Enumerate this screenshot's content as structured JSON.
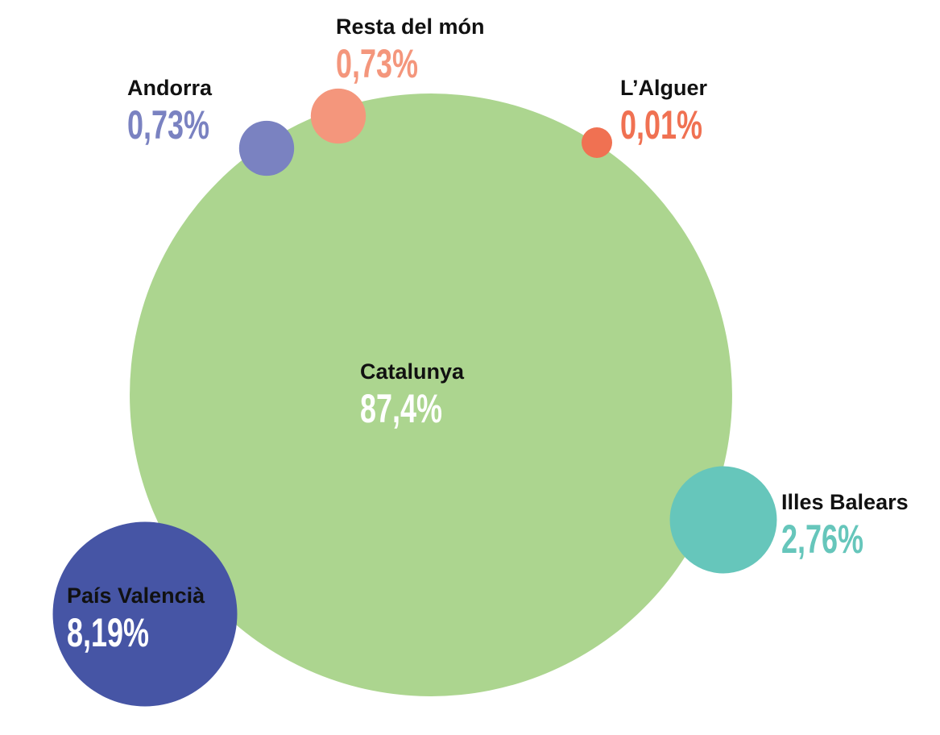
{
  "chart_data": {
    "type": "bubble",
    "categories": [
      "Catalunya",
      "País Valencià",
      "Illes Balears",
      "Andorra",
      "Resta del món",
      "L’Alguer"
    ],
    "values": [
      87.4,
      8.19,
      2.76,
      0.73,
      0.73,
      0.01
    ],
    "value_labels": [
      "87,4%",
      "8,19%",
      "2,76%",
      "0,73%",
      "0,73%",
      "0,01%"
    ],
    "colors": [
      "#acd58f",
      "#4655a5",
      "#66c6bb",
      "#7a82c1",
      "#f4967c",
      "#f07152"
    ]
  }
}
